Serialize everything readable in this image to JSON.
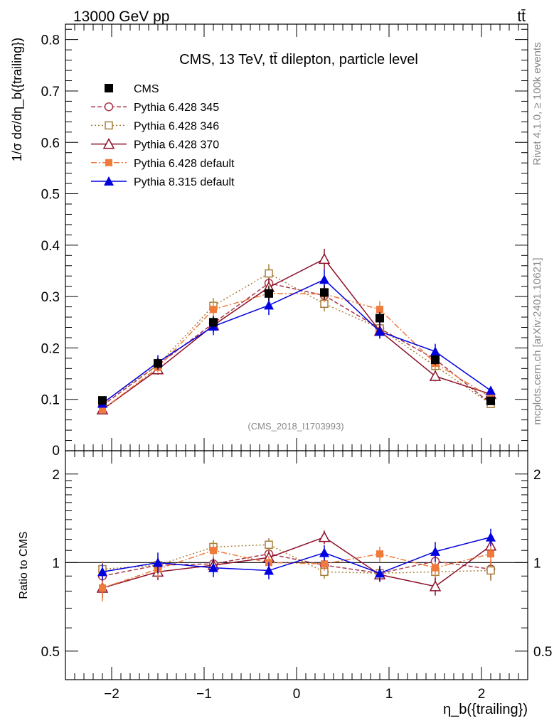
{
  "header": {
    "energy_label": "13000 GeV pp",
    "process_label": "tt̄"
  },
  "side_labels": {
    "rivet": "Rivet 4.1.0, ≥ 100k events",
    "mcplots": "mcplots.cern.ch [arXiv:2401.10621]"
  },
  "chart_data": [
    {
      "type": "line",
      "title": "CMS, 13 TeV, tt̄ dilepton, particle level",
      "analysis_tag": "(CMS_2018_I1703993)",
      "ylabel": "1/σ dσ/dη_b({trailing})",
      "ylim": [
        0,
        0.83
      ],
      "yticks": [
        "0.1",
        "0.2",
        "0.3",
        "0.4",
        "0.5",
        "0.6",
        "0.7",
        "0.8"
      ],
      "xlim": [
        -2.5,
        2.5
      ],
      "xticks": [
        "−2",
        "−1",
        "0",
        "1",
        "2"
      ],
      "xlabel": "η_b({trailing})",
      "x": [
        -2.1,
        -1.5,
        -0.9,
        -0.3,
        0.3,
        0.9,
        1.5,
        2.1
      ],
      "series": [
        {
          "name": "CMS",
          "color": "#000000",
          "marker": "square-filled",
          "dash": "none",
          "values": [
            0.098,
            0.17,
            0.25,
            0.306,
            0.308,
            0.258,
            0.177,
            0.097
          ],
          "errors": [
            0.006,
            0.01,
            0.012,
            0.014,
            0.014,
            0.012,
            0.01,
            0.006
          ]
        },
        {
          "name": "Pythia 6.428 345",
          "color": "#a8394a",
          "marker": "circle-open",
          "dash": "6,3",
          "values": [
            0.088,
            0.167,
            0.248,
            0.326,
            0.302,
            0.238,
            0.178,
            0.092
          ],
          "errors": [
            0.006,
            0.01,
            0.013,
            0.016,
            0.015,
            0.013,
            0.011,
            0.007
          ]
        },
        {
          "name": "Pythia 6.428 346",
          "color": "#a87f3a",
          "marker": "square-open",
          "dash": "2,3",
          "values": [
            0.093,
            0.167,
            0.282,
            0.345,
            0.286,
            0.238,
            0.165,
            0.091
          ],
          "errors": [
            0.006,
            0.01,
            0.015,
            0.018,
            0.015,
            0.013,
            0.011,
            0.007
          ]
        },
        {
          "name": "Pythia 6.428 370",
          "color": "#8c1029",
          "marker": "triangle-open",
          "dash": "none",
          "values": [
            0.08,
            0.158,
            0.244,
            0.318,
            0.373,
            0.233,
            0.145,
            0.11
          ],
          "errors": [
            0.006,
            0.01,
            0.013,
            0.017,
            0.02,
            0.013,
            0.01,
            0.008
          ]
        },
        {
          "name": "Pythia 6.428 default",
          "color": "#f07a3a",
          "marker": "square-filled-small",
          "dash": "8,3,2,3",
          "values": [
            0.08,
            0.162,
            0.275,
            0.306,
            0.305,
            0.275,
            0.17,
            0.104
          ],
          "errors": [
            0.008,
            0.01,
            0.015,
            0.016,
            0.016,
            0.016,
            0.011,
            0.008
          ]
        },
        {
          "name": "Pythia 8.315 default",
          "color": "#0000e0",
          "marker": "triangle-filled",
          "dash": "none",
          "values": [
            0.092,
            0.172,
            0.242,
            0.283,
            0.333,
            0.232,
            0.193,
            0.117
          ],
          "errors": [
            0.006,
            0.014,
            0.017,
            0.019,
            0.02,
            0.014,
            0.015,
            0.008
          ]
        }
      ]
    },
    {
      "type": "line",
      "ylabel": "Ratio to CMS",
      "ylim": [
        0.4,
        2.4
      ],
      "yscale": "log",
      "yticks": [
        "0.5",
        "1",
        "2"
      ],
      "reference": 1.0,
      "x": [
        -2.1,
        -1.5,
        -0.9,
        -0.3,
        0.3,
        0.9,
        1.5,
        2.1
      ],
      "series": [
        {
          "name": "Pythia 6.428 345",
          "values": [
            0.9,
            0.98,
            0.99,
            1.07,
            0.98,
            0.92,
            1.01,
            0.95
          ]
        },
        {
          "name": "Pythia 6.428 346",
          "values": [
            0.95,
            0.98,
            1.13,
            1.15,
            0.93,
            0.92,
            0.93,
            0.94
          ]
        },
        {
          "name": "Pythia 6.428 370",
          "values": [
            0.82,
            0.93,
            0.98,
            1.04,
            1.22,
            0.91,
            0.83,
            1.14
          ]
        },
        {
          "name": "Pythia 6.428 default",
          "values": [
            0.82,
            0.95,
            1.1,
            1.0,
            0.99,
            1.07,
            0.96,
            1.07
          ]
        },
        {
          "name": "Pythia 8.315 default",
          "values": [
            0.93,
            1.0,
            0.96,
            0.94,
            1.08,
            0.92,
            1.09,
            1.22
          ]
        }
      ]
    }
  ]
}
